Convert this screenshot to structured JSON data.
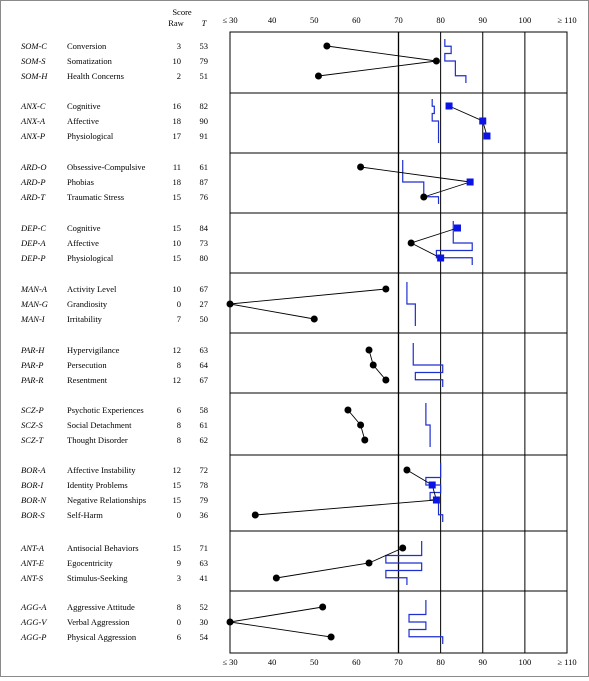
{
  "chart_data": {
    "type": "profile",
    "x_ticks": [
      "≤ 30",
      "40",
      "50",
      "60",
      "70",
      "80",
      "90",
      "100",
      "≥ 110"
    ],
    "xlim": [
      30,
      110
    ],
    "headers": {
      "score": "Score",
      "raw": "Raw",
      "t": "T"
    },
    "groups": [
      {
        "name": "SOM",
        "rows": [
          {
            "code": "SOM-C",
            "label": "Conversion",
            "raw": "3",
            "t": "53",
            "value": 53,
            "sup": null
          },
          {
            "code": "SOM-S",
            "label": "Somatization",
            "raw": "10",
            "t": "79",
            "value": 79,
            "sup": null
          },
          {
            "code": "SOM-H",
            "label": "Health Concerns",
            "raw": "2",
            "t": "51",
            "value": 51,
            "sup": null
          }
        ],
        "range": [
          [
            81,
            82.5
          ],
          [
            81,
            83.5
          ],
          [
            83.5,
            86
          ]
        ]
      },
      {
        "name": "ANX",
        "rows": [
          {
            "code": "ANX-C",
            "label": "Cognitive",
            "raw": "16",
            "t": "82",
            "value": 82,
            "sup": true
          },
          {
            "code": "ANX-A",
            "label": "Affective",
            "raw": "18",
            "t": "90",
            "value": 90,
            "sup": true
          },
          {
            "code": "ANX-P",
            "label": "Physiological",
            "raw": "17",
            "t": "91",
            "value": 91,
            "sup": true
          }
        ],
        "range": [
          [
            78,
            78.5
          ],
          [
            78,
            79.5
          ],
          [
            79.5,
            79.5
          ]
        ]
      },
      {
        "name": "ARD",
        "rows": [
          {
            "code": "ARD-O",
            "label": "Obsessive-Compulsive",
            "raw": "11",
            "t": "61",
            "value": 61,
            "sup": null
          },
          {
            "code": "ARD-P",
            "label": "Phobias",
            "raw": "18",
            "t": "87",
            "value": 87,
            "sup": true
          },
          {
            "code": "ARD-T",
            "label": "Traumatic Stress",
            "raw": "15",
            "t": "76",
            "value": 76,
            "sup": null
          }
        ],
        "range": [
          [
            71,
            71
          ],
          [
            71,
            76
          ],
          [
            76,
            79.5
          ]
        ]
      },
      {
        "name": "DEP",
        "rows": [
          {
            "code": "DEP-C",
            "label": "Cognitive",
            "raw": "15",
            "t": "84",
            "value": 84,
            "sup": true
          },
          {
            "code": "DEP-A",
            "label": "Affective",
            "raw": "10",
            "t": "73",
            "value": 73,
            "sup": null
          },
          {
            "code": "DEP-P",
            "label": "Physiological",
            "raw": "15",
            "t": "80",
            "value": 80,
            "sup": true
          }
        ],
        "range": [
          [
            83,
            83
          ],
          [
            83,
            87.5
          ],
          [
            79,
            87.5
          ]
        ]
      },
      {
        "name": "MAN",
        "rows": [
          {
            "code": "MAN-A",
            "label": "Activity Level",
            "raw": "10",
            "t": "67",
            "value": 67,
            "sup": null
          },
          {
            "code": "MAN-G",
            "label": "Grandiosity",
            "raw": "0",
            "t": "27",
            "value": 30,
            "sup": null
          },
          {
            "code": "MAN-I",
            "label": "Irritability",
            "raw": "7",
            "t": "50",
            "value": 50,
            "sup": null
          }
        ],
        "range": [
          [
            72,
            72
          ],
          [
            72,
            74
          ],
          [
            74,
            74
          ]
        ]
      },
      {
        "name": "PAR",
        "rows": [
          {
            "code": "PAR-H",
            "label": "Hypervigilance",
            "raw": "12",
            "t": "63",
            "value": 63,
            "sup": null
          },
          {
            "code": "PAR-P",
            "label": "Persecution",
            "raw": "8",
            "t": "64",
            "value": 64,
            "sup": null
          },
          {
            "code": "PAR-R",
            "label": "Resentment",
            "raw": "12",
            "t": "67",
            "value": 67,
            "sup": null
          }
        ],
        "range": [
          [
            73.5,
            73.5
          ],
          [
            73.5,
            80.5
          ],
          [
            74,
            80.5
          ]
        ]
      },
      {
        "name": "SCZ",
        "rows": [
          {
            "code": "SCZ-P",
            "label": "Psychotic Experiences",
            "raw": "6",
            "t": "58",
            "value": 58,
            "sup": null
          },
          {
            "code": "SCZ-S",
            "label": "Social Detachment",
            "raw": "8",
            "t": "61",
            "value": 61,
            "sup": null
          },
          {
            "code": "SCZ-T",
            "label": "Thought Disorder",
            "raw": "8",
            "t": "62",
            "value": 62,
            "sup": null
          }
        ],
        "range": [
          [
            76.5,
            76.5
          ],
          [
            76.5,
            77.5
          ],
          [
            77.5,
            77.5
          ]
        ]
      },
      {
        "name": "BOR",
        "rows": [
          {
            "code": "BOR-A",
            "label": "Affective Instability",
            "raw": "12",
            "t": "72",
            "value": 72,
            "sup": null
          },
          {
            "code": "BOR-I",
            "label": "Identity Problems",
            "raw": "15",
            "t": "78",
            "value": 78,
            "sup": true
          },
          {
            "code": "BOR-N",
            "label": "Negative Relationships",
            "raw": "15",
            "t": "79",
            "value": 79,
            "sup": true
          },
          {
            "code": "BOR-S",
            "label": "Self-Harm",
            "raw": "0",
            "t": "36",
            "value": 36,
            "sup": null
          }
        ],
        "range": [
          [
            80,
            80
          ],
          [
            76.5,
            80
          ],
          [
            77.5,
            79.5
          ],
          [
            79.5,
            80.5
          ]
        ]
      },
      {
        "name": "ANT",
        "rows": [
          {
            "code": "ANT-A",
            "label": "Antisocial Behaviors",
            "raw": "15",
            "t": "71",
            "value": 71,
            "sup": null
          },
          {
            "code": "ANT-E",
            "label": "Egocentricity",
            "raw": "9",
            "t": "63",
            "value": 63,
            "sup": null
          },
          {
            "code": "ANT-S",
            "label": "Stimulus-Seeking",
            "raw": "3",
            "t": "41",
            "value": 41,
            "sup": null
          }
        ],
        "range": [
          [
            75.5,
            75.5
          ],
          [
            67,
            75.5
          ],
          [
            67,
            72
          ]
        ]
      },
      {
        "name": "AGG",
        "rows": [
          {
            "code": "AGG-A",
            "label": "Aggressive Attitude",
            "raw": "8",
            "t": "52",
            "value": 52,
            "sup": null
          },
          {
            "code": "AGG-V",
            "label": "Verbal Aggression",
            "raw": "0",
            "t": "30",
            "value": 30,
            "sup": null
          },
          {
            "code": "AGG-P",
            "label": "Physical Aggression",
            "raw": "6",
            "t": "54",
            "value": 54,
            "sup": null
          }
        ],
        "range": [
          [
            76.5,
            76.5
          ],
          [
            72.5,
            76.5
          ],
          [
            72.5,
            80.5
          ]
        ]
      }
    ],
    "colors": {
      "point": "#000000",
      "square": "#0a14e6",
      "range": "#1e2fd0",
      "grid": "#000000"
    }
  }
}
